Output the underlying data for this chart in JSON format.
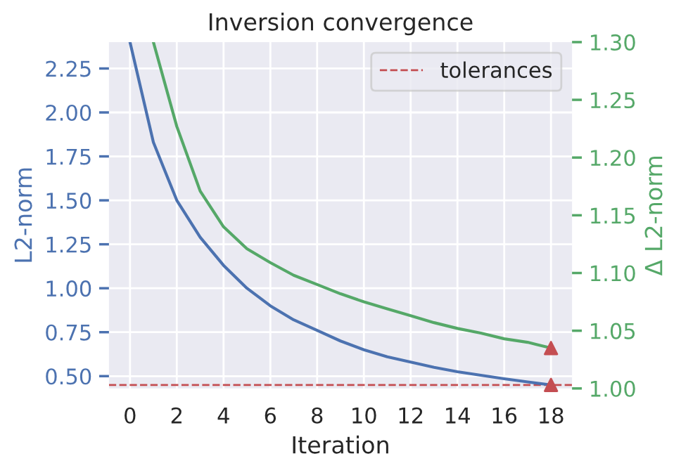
{
  "chart_data": {
    "type": "line",
    "title": "Inversion convergence",
    "xlabel": "Iteration",
    "ylabel": "L2-norm",
    "y2label": "Δ L2-norm",
    "x": [
      0,
      1,
      2,
      3,
      4,
      5,
      6,
      7,
      8,
      9,
      10,
      11,
      12,
      13,
      14,
      15,
      16,
      17,
      18
    ],
    "series": [
      {
        "color": "#4c72b0",
        "axis": "y",
        "values": [
          2.4,
          1.83,
          1.5,
          1.29,
          1.13,
          1.0,
          0.9,
          0.82,
          0.76,
          0.7,
          0.65,
          0.61,
          0.58,
          0.55,
          0.525,
          0.505,
          0.485,
          0.467,
          0.45
        ]
      },
      {
        "color": "#55a868",
        "axis": "y2",
        "values": [
          null,
          1.3,
          1.227,
          1.171,
          1.14,
          1.121,
          1.109,
          1.098,
          1.09,
          1.082,
          1.075,
          1.069,
          1.063,
          1.057,
          1.052,
          1.048,
          1.043,
          1.04,
          1.035
        ]
      },
      {
        "type": "scatter",
        "color": "#c44e52",
        "marker": "triangle",
        "axis": "y",
        "x": [
          18
        ],
        "values": [
          0.45
        ]
      },
      {
        "type": "scatter",
        "color": "#c44e52",
        "marker": "triangle",
        "axis": "y2",
        "x": [
          18
        ],
        "values": [
          1.035
        ]
      }
    ],
    "ref_lines": [
      {
        "axis": "y",
        "value": 0.45,
        "label": "tolerances",
        "color": "#c44e52",
        "line_style": "dashed"
      }
    ],
    "xlim": [
      -0.9,
      18.9
    ],
    "xticks": [
      0,
      2,
      4,
      6,
      8,
      10,
      12,
      14,
      16,
      18
    ],
    "ylim": [
      0.43,
      2.4
    ],
    "yticks": [
      {
        "value": 0.5,
        "label": "0.50"
      },
      0.75,
      {
        "value": 1,
        "label": "1.00"
      },
      1.25,
      {
        "value": 1.5,
        "label": "1.50"
      },
      1.75,
      {
        "value": 2,
        "label": "2.00"
      },
      2.25
    ],
    "y2lim": [
      1.0,
      1.3
    ],
    "y2ticks": [
      {
        "value": 1,
        "label": "1.00"
      },
      1.05,
      {
        "value": 1.1,
        "label": "1.10"
      },
      1.15,
      {
        "value": 1.2,
        "label": "1.20"
      },
      1.25,
      {
        "value": 1.3,
        "label": "1.30"
      }
    ],
    "grid": true,
    "legend": "top right",
    "marker": "none",
    "line_style": "solid"
  }
}
